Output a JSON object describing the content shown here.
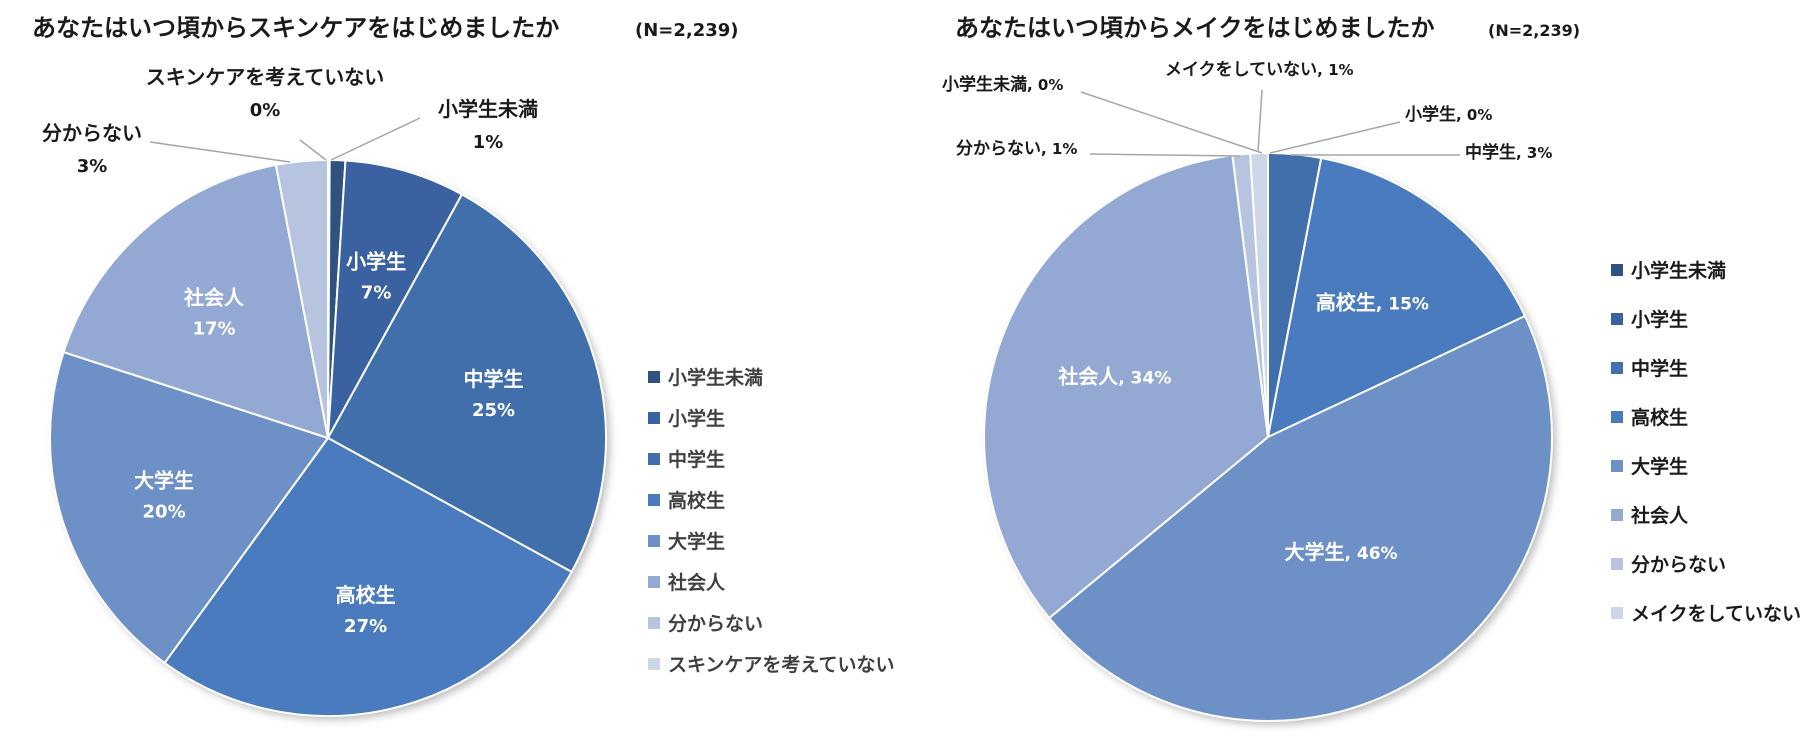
{
  "chart_data": [
    {
      "type": "pie",
      "title": "あなたはいつ頃からスキンケアをはじめましたか",
      "note": "(N=2,239)",
      "slices": [
        {
          "label": "小学生未満",
          "value": 1,
          "value_label": "1%",
          "color": "#2f5280"
        },
        {
          "label": "小学生",
          "value": 7,
          "value_label": "7%",
          "color": "#3a62a0"
        },
        {
          "label": "中学生",
          "value": 25,
          "value_label": "25%",
          "color": "#416fab"
        },
        {
          "label": "高校生",
          "value": 27,
          "value_label": "27%",
          "color": "#4a7bbf"
        },
        {
          "label": "大学生",
          "value": 20,
          "value_label": "20%",
          "color": "#6d90c7"
        },
        {
          "label": "社会人",
          "value": 17,
          "value_label": "17%",
          "color": "#93a9d3"
        },
        {
          "label": "分からない",
          "value": 3,
          "value_label": "3%",
          "color": "#b6c4e0"
        },
        {
          "label": "スキンケアを考えていない",
          "value": 0,
          "value_label": "0%",
          "color": "#cdd6e9"
        }
      ],
      "legend": [
        "小学生未満",
        "小学生",
        "中学生",
        "高校生",
        "大学生",
        "社会人",
        "分からない",
        "スキンケアを考えていない"
      ],
      "legend_position": "right"
    },
    {
      "type": "pie",
      "title": "あなたはいつ頃からメイクをはじめましたか",
      "note": "(N=2,239)",
      "slices": [
        {
          "label": "小学生未満",
          "value": 0,
          "value_label": "0%",
          "color": "#2f5280"
        },
        {
          "label": "小学生",
          "value": 0,
          "value_label": "0%",
          "color": "#3a62a0"
        },
        {
          "label": "中学生",
          "value": 3,
          "value_label": "3%",
          "color": "#416fab"
        },
        {
          "label": "高校生",
          "value": 15,
          "value_label": "15%",
          "color": "#4a7bbf"
        },
        {
          "label": "大学生",
          "value": 46,
          "value_label": "46%",
          "color": "#6d90c7"
        },
        {
          "label": "社会人",
          "value": 34,
          "value_label": "34%",
          "color": "#93a9d3"
        },
        {
          "label": "分からない",
          "value": 1,
          "value_label": "1%",
          "color": "#b6c4e0"
        },
        {
          "label": "メイクをしていない",
          "value": 1,
          "value_label": "1%",
          "color": "#cdd6e9"
        }
      ],
      "legend": [
        "小学生未満",
        "小学生",
        "中学生",
        "高校生",
        "大学生",
        "社会人",
        "分からない",
        "メイクをしていない"
      ],
      "legend_position": "right"
    }
  ]
}
